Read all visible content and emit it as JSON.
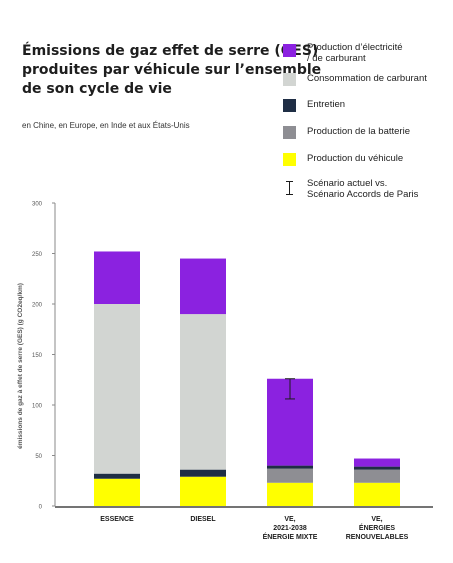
{
  "heading": {
    "title_lines": [
      "Émissions de gaz effet de serre (GES)",
      "produites par véhicule sur l’ensemble",
      "de son cycle de vie"
    ],
    "subtitle": "en Chine, en Europe, en Inde et aux États-Unis"
  },
  "legend": [
    {
      "label_lines": [
        "Production d’électricité",
        "/ de carburant"
      ],
      "color": "#8b22e0"
    },
    {
      "label_lines": [
        "Consommation de carburant"
      ],
      "color": "#d2d5d2"
    },
    {
      "label_lines": [
        "Entretien"
      ],
      "color": "#1f2e45"
    },
    {
      "label_lines": [
        "Production de la batterie"
      ],
      "color": "#8e8e93"
    },
    {
      "label_lines": [
        "Production du véhicule"
      ],
      "color": "#ffff00"
    },
    {
      "label_lines": [
        "Scénario actuel vs.",
        "Scénario Accords de Paris"
      ],
      "icon": "error-bar-icon"
    }
  ],
  "chart_data": {
    "type": "bar",
    "stacked": true,
    "ylabel": "émissions de gaz à effet de serre (GES) (g CO2eq/km)",
    "ylim": [
      0,
      300
    ],
    "yticks": [
      0,
      50,
      100,
      150,
      200,
      250,
      300
    ],
    "grid": false,
    "legend_position": "top-right",
    "categories": [
      [
        "ESSENCE"
      ],
      [
        "DIESEL"
      ],
      [
        "VE,",
        "2021-2038",
        "ÉNERGIE MIXTE"
      ],
      [
        "VE,",
        "ÉNERGIES",
        "RENOUVELABLES"
      ]
    ],
    "series": [
      {
        "name": "Production du véhicule",
        "color": "#ffff00",
        "values": [
          27,
          29,
          23,
          23
        ]
      },
      {
        "name": "Production de la batterie",
        "color": "#8e8e93",
        "values": [
          0,
          0,
          14,
          13
        ]
      },
      {
        "name": "Entretien",
        "color": "#1f2e45",
        "values": [
          5,
          7,
          3,
          3
        ]
      },
      {
        "name": "Consommation de carburant",
        "color": "#d2d5d2",
        "values": [
          168,
          154,
          0,
          0
        ]
      },
      {
        "name": "Production d’électricité / de carburant",
        "color": "#8b22e0",
        "values": [
          52,
          55,
          86,
          8
        ]
      }
    ],
    "error_bars": [
      null,
      null,
      {
        "low": 106,
        "high": 126
      },
      null
    ]
  }
}
